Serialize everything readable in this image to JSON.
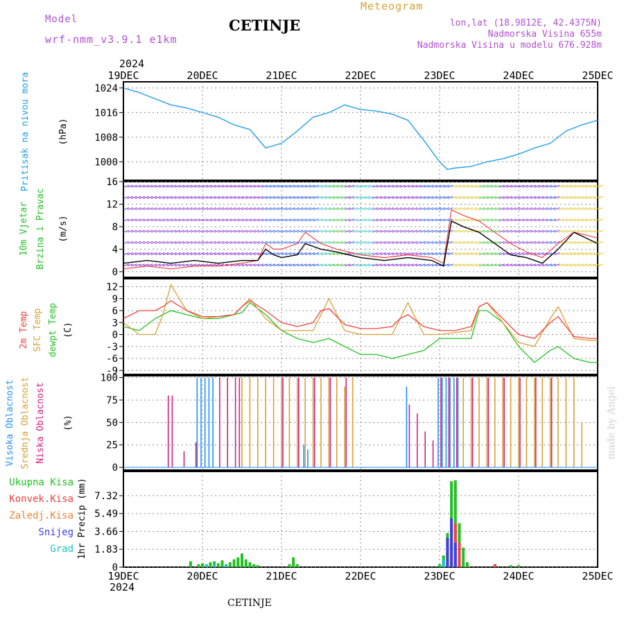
{
  "header": {
    "model_label": "Model",
    "model_name": "wrf-nmm_v3.9.1 e1km",
    "title": "CETINJE",
    "meteogram_label": "Meteogram",
    "lonlat": "lon,lat (18.9812E, 42.4375N)",
    "elevation": "Nadmorska Visina 655m",
    "model_elevation": "Nadmorska Visina u modelu 676.928m",
    "year_top": "2024",
    "year_bottom": "2024",
    "footer": "CETINJE",
    "watermark": "made by Angel"
  },
  "colors": {
    "pressure": "#1ea0e6",
    "wind_label": "#22c022",
    "temp2m": "#f04040",
    "sfc": "#d8a030",
    "dewpt": "#22c022",
    "high_cloud": "#1e90ff",
    "mid_cloud": "#d8a030",
    "low_cloud": "#d02080",
    "total_precip": "#22c022",
    "conv_precip": "#f04040",
    "frozen_precip": "#f08030",
    "snow": "#4040e0",
    "hail": "#20c0c0",
    "purple_text": "#b050d0"
  },
  "chart_data": [
    {
      "panel": "pressure",
      "type": "line",
      "x_ticks": [
        "19DEC",
        "20DEC",
        "21DEC",
        "22DEC",
        "23DEC",
        "24DEC",
        "25DEC"
      ],
      "ylabel_name": "Pritisak na nivou mora",
      "ylabel_unit": "(hPa)",
      "ylim": [
        994,
        1026
      ],
      "yticks": [
        "1024",
        "1016",
        "1008",
        "1000"
      ],
      "series": [
        {
          "x": [
            0,
            0.2,
            0.4,
            0.6,
            0.8,
            1.0,
            1.2,
            1.4,
            1.6,
            1.8,
            2.0,
            2.2,
            2.4,
            2.6,
            2.8,
            3.0,
            3.2,
            3.4,
            3.6,
            3.8,
            4.0,
            4.1,
            4.2,
            4.4,
            4.6,
            4.8,
            5.0,
            5.2,
            5.4,
            5.6,
            5.8,
            6.0
          ],
          "values": [
            1024,
            1022.5,
            1020.5,
            1018.5,
            1017.5,
            1016,
            1014.5,
            1012,
            1010.5,
            1004.5,
            1006,
            1010,
            1014.5,
            1016,
            1018.5,
            1017,
            1016.5,
            1015.5,
            1013.5,
            1007,
            1000,
            997.5,
            998,
            998.5,
            1000,
            1001,
            1002.5,
            1004.5,
            1006,
            1010,
            1012,
            1013.5
          ]
        }
      ]
    },
    {
      "panel": "wind",
      "type": "line",
      "x_ticks": [
        "19DEC",
        "20DEC",
        "21DEC",
        "22DEC",
        "23DEC",
        "24DEC",
        "25DEC"
      ],
      "ylabel_name_1": "10m Vjetar",
      "ylabel_name_2": "Brzina i Pravac",
      "ylabel_unit": "(m/s)",
      "ylim": [
        -1,
        16
      ],
      "yticks": [
        "16",
        "12",
        "8",
        "4",
        "0"
      ],
      "series": [
        {
          "name": "speed",
          "x": [
            0,
            0.3,
            0.6,
            0.9,
            1.2,
            1.5,
            1.7,
            1.8,
            1.9,
            2.0,
            2.2,
            2.3,
            2.5,
            2.7,
            3.0,
            3.3,
            3.6,
            3.9,
            4.05,
            4.15,
            4.3,
            4.5,
            4.7,
            4.9,
            5.1,
            5.3,
            5.5,
            5.7,
            6.0
          ],
          "values": [
            1.5,
            2,
            1.5,
            2,
            1.5,
            2,
            2,
            4,
            3,
            2.5,
            3,
            5,
            4,
            3.5,
            2.5,
            2,
            2.5,
            2,
            1,
            9,
            8,
            7,
            5,
            3,
            2.5,
            1.5,
            4,
            7,
            5
          ]
        },
        {
          "name": "gust",
          "x": [
            0,
            0.3,
            0.6,
            0.9,
            1.2,
            1.5,
            1.7,
            1.8,
            1.9,
            2.0,
            2.2,
            2.3,
            2.5,
            2.7,
            3.0,
            3.3,
            3.6,
            3.9,
            4.05,
            4.15,
            4.3,
            4.5,
            4.7,
            4.9,
            5.1,
            5.3,
            5.5,
            5.7,
            6.0
          ],
          "values": [
            0.5,
            1,
            0.5,
            1,
            1,
            1.5,
            2,
            5,
            4,
            4,
            5,
            7,
            5,
            4,
            3,
            2.5,
            3,
            2.5,
            1.5,
            11,
            10,
            9,
            7,
            5,
            3.5,
            2.5,
            5,
            7,
            6
          ]
        }
      ]
    },
    {
      "panel": "temperature",
      "type": "line",
      "x_ticks": [
        "19DEC",
        "20DEC",
        "21DEC",
        "22DEC",
        "23DEC",
        "24DEC",
        "25DEC"
      ],
      "ylabel_name_1": "2m Temp",
      "ylabel_name_2": "SFC Temp",
      "ylabel_name_3": "dewpt Temp",
      "ylabel_unit": "(C)",
      "ylim": [
        -10,
        14
      ],
      "yticks": [
        "12",
        "9",
        "6",
        "3",
        "0",
        "-3",
        "-6",
        "-9"
      ],
      "series": [
        {
          "name": "2m Temp",
          "x": [
            0,
            0.2,
            0.4,
            0.5,
            0.6,
            0.8,
            1.0,
            1.2,
            1.4,
            1.5,
            1.6,
            1.8,
            2.0,
            2.2,
            2.4,
            2.5,
            2.6,
            2.8,
            3.0,
            3.2,
            3.4,
            3.5,
            3.6,
            3.8,
            4.0,
            4.2,
            4.4,
            4.5,
            4.6,
            4.8,
            5.0,
            5.2,
            5.4,
            5.5,
            5.7,
            5.9,
            6.0
          ],
          "values": [
            4,
            6,
            6,
            7,
            8.5,
            6,
            4.5,
            4.5,
            5,
            7,
            8.5,
            6,
            3,
            2,
            3,
            6,
            6.5,
            2.5,
            1.5,
            1.5,
            2,
            4,
            5,
            2,
            1,
            1,
            2,
            7,
            8,
            4,
            0,
            -1,
            3,
            4.5,
            -0.5,
            -1,
            -1
          ]
        },
        {
          "name": "SFC Temp",
          "x": [
            0,
            0.2,
            0.4,
            0.5,
            0.6,
            0.8,
            1.0,
            1.2,
            1.4,
            1.5,
            1.6,
            1.8,
            2.0,
            2.2,
            2.4,
            2.5,
            2.6,
            2.8,
            3.0,
            3.2,
            3.4,
            3.5,
            3.6,
            3.8,
            4.0,
            4.2,
            4.4,
            4.5,
            4.6,
            4.8,
            5.0,
            5.2,
            5.4,
            5.5,
            5.7,
            5.9,
            6.0
          ],
          "values": [
            3,
            0,
            0,
            5,
            12.5,
            6,
            4,
            4.5,
            5,
            7,
            9,
            4,
            1,
            1,
            1,
            5,
            9,
            1,
            0,
            0,
            0,
            4,
            8,
            0,
            0,
            0.5,
            1,
            7,
            8,
            3,
            -2,
            -3,
            4,
            7,
            -1,
            -1.5,
            -1.5
          ]
        },
        {
          "name": "dewpt Temp",
          "x": [
            0,
            0.2,
            0.4,
            0.6,
            0.8,
            1.0,
            1.2,
            1.4,
            1.5,
            1.6,
            1.8,
            2.0,
            2.2,
            2.4,
            2.6,
            2.8,
            3.0,
            3.2,
            3.4,
            3.6,
            3.8,
            4.0,
            4.2,
            4.4,
            4.5,
            4.6,
            4.8,
            5.0,
            5.2,
            5.4,
            5.5,
            5.7,
            5.9,
            6.0
          ],
          "values": [
            2,
            1,
            4,
            6,
            5,
            4,
            4,
            5,
            5.5,
            8,
            5,
            1,
            -1,
            -2,
            -1,
            -3,
            -5,
            -5,
            -6,
            -5,
            -4,
            -1,
            -1,
            -1,
            6,
            6,
            3,
            -3,
            -7,
            -4,
            -3,
            -6,
            -7,
            -7
          ]
        }
      ]
    },
    {
      "panel": "clouds",
      "type": "bar",
      "x_ticks": [
        "19DEC",
        "20DEC",
        "21DEC",
        "22DEC",
        "23DEC",
        "24DEC",
        "25DEC"
      ],
      "ylabel_name_1": "Visoka Oblacnost",
      "ylabel_name_2": "Srednja Oblacnost",
      "ylabel_name_3": "Niska Oblacnost",
      "ylabel_unit": "(%)",
      "ylim": [
        -3,
        102
      ],
      "yticks": [
        "100",
        "75",
        "50",
        "25",
        "0"
      ],
      "series": [
        {
          "name": "high",
          "x": [
            0.95,
            1.0,
            1.05,
            1.1,
            1.15,
            2.3,
            2.35,
            3.6,
            4.0,
            4.05,
            4.1,
            4.15,
            4.2,
            4.25
          ],
          "values": [
            100,
            100,
            100,
            100,
            100,
            25,
            20,
            90,
            100,
            100,
            100,
            100,
            100,
            100
          ]
        },
        {
          "name": "mid",
          "x": [
            1.5,
            1.6,
            1.7,
            1.8,
            1.9,
            2.0,
            2.1,
            2.2,
            2.3,
            2.4,
            2.5,
            2.6,
            2.7,
            2.8,
            2.9,
            4.3,
            4.4,
            4.5,
            4.6,
            4.7,
            4.8,
            4.9,
            5.0,
            5.1,
            5.2,
            5.3,
            5.4,
            5.5,
            5.6,
            5.7,
            5.8
          ],
          "values": [
            100,
            100,
            100,
            100,
            100,
            100,
            100,
            100,
            100,
            100,
            100,
            100,
            100,
            90,
            100,
            100,
            100,
            100,
            100,
            100,
            100,
            100,
            100,
            100,
            100,
            100,
            100,
            100,
            100,
            100,
            50
          ]
        },
        {
          "name": "low",
          "x": [
            0.55,
            0.6,
            0.75,
            0.9,
            1.2,
            1.3,
            1.4,
            1.45,
            2.0,
            2.2,
            2.4,
            2.6,
            2.8,
            3.6,
            3.7,
            3.8,
            3.9,
            4.0,
            4.1,
            4.2,
            4.4,
            4.6,
            4.8,
            5.0,
            5.2,
            5.4
          ],
          "values": [
            80,
            80,
            18,
            28,
            100,
            100,
            100,
            100,
            100,
            100,
            100,
            100,
            100,
            70,
            60,
            40,
            30,
            100,
            100,
            100,
            100,
            100,
            100,
            100,
            100,
            100
          ]
        }
      ]
    },
    {
      "panel": "precipitation",
      "type": "bar",
      "x_ticks": [
        "19DEC",
        "20DEC",
        "21DEC",
        "22DEC",
        "23DEC",
        "24DEC",
        "25DEC"
      ],
      "legend": [
        "Ukupna Kisa",
        "Konvek.Kisa",
        "Zaledj.Kisa",
        "Snijeg",
        "Grad"
      ],
      "ylabel": "1hr Precip (mm)",
      "ylim": [
        0,
        9.8
      ],
      "yticks": [
        "7.32",
        "5.49",
        "3.66",
        "1.83",
        "0"
      ],
      "series": [
        {
          "name": "Ukupna Kisa",
          "x": [
            0.85,
            0.95,
            1.0,
            1.05,
            1.1,
            1.15,
            1.2,
            1.25,
            1.3,
            1.35,
            1.4,
            1.45,
            1.5,
            1.55,
            1.6,
            1.65,
            1.7,
            2.1,
            2.15,
            2.2,
            4.0,
            4.05,
            4.1,
            4.15,
            4.2,
            4.25,
            4.3,
            4.35,
            4.7,
            4.9,
            5.0
          ],
          "values": [
            0.6,
            0.3,
            0.4,
            0.3,
            0.5,
            0.6,
            0.4,
            0.7,
            0.3,
            0.5,
            0.8,
            1.0,
            1.4,
            0.8,
            0.5,
            0.3,
            0.2,
            0.3,
            1.0,
            0.3,
            0.3,
            1.2,
            3.5,
            8.8,
            8.9,
            4.5,
            2.0,
            0.5,
            0.3,
            0.2,
            0.2
          ]
        },
        {
          "name": "Konvek.Kisa",
          "x": [
            4.1,
            4.15,
            4.2,
            4.25,
            4.7
          ],
          "values": [
            1.5,
            4.0,
            4.5,
            2.5,
            0.3
          ]
        },
        {
          "name": "Snijeg",
          "x": [
            4.1,
            4.15,
            4.2
          ],
          "values": [
            3.0,
            5.0,
            2.5
          ]
        },
        {
          "name": "Grad",
          "x": [
            1.05,
            1.15,
            1.3,
            4.05
          ],
          "values": [
            0.3,
            0.4,
            0.3,
            0.8
          ]
        }
      ]
    }
  ]
}
